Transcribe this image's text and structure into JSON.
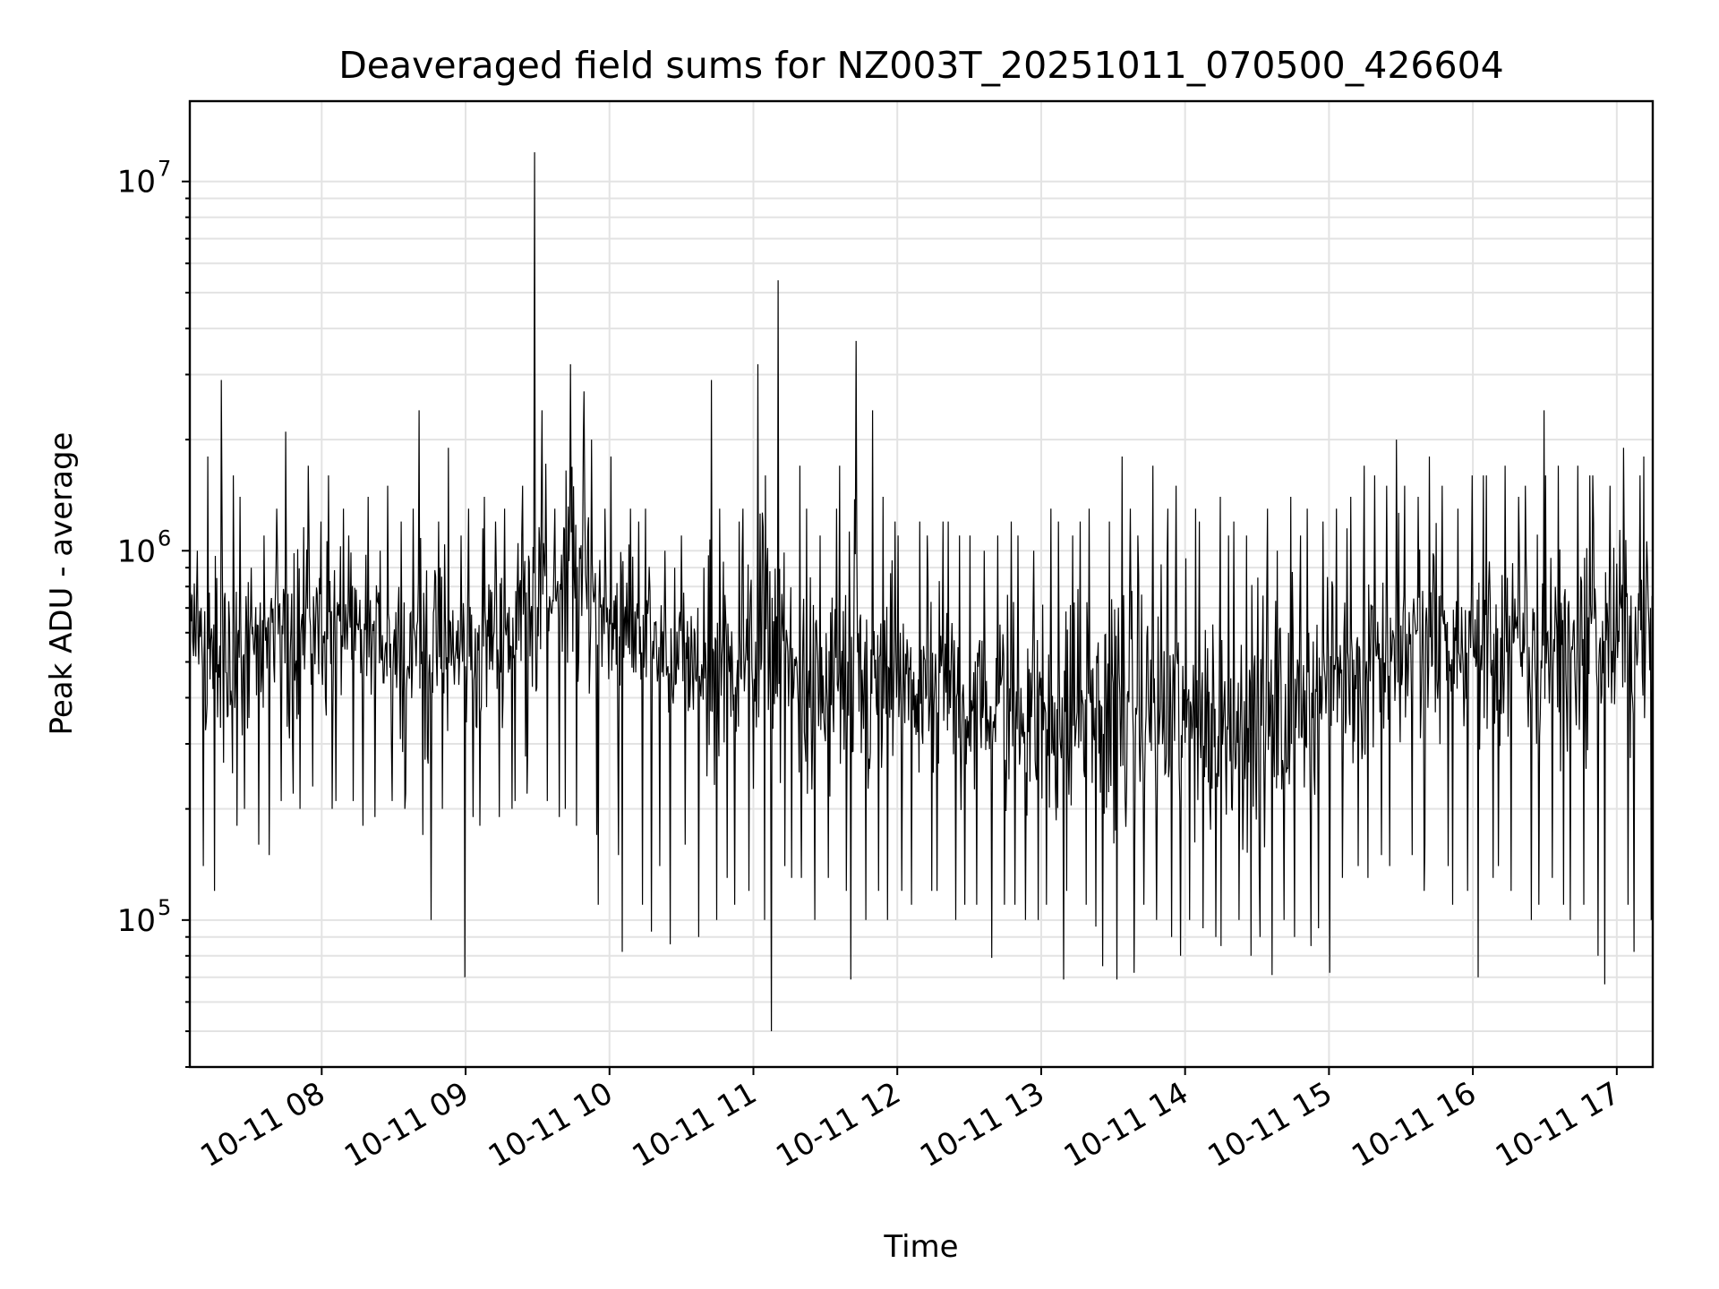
{
  "chart_data": {
    "type": "line",
    "title": "Deaveraged field sums for NZ003T_20251011_070500_426604",
    "xlabel": "Time",
    "ylabel": "Peak ADU - average",
    "yscale": "log",
    "ylim": [
      40000,
      16500000
    ],
    "xlim": [
      "2025-10-11 07:05",
      "2025-10-11 17:15"
    ],
    "grid": true,
    "legend": "none",
    "line_color": "#000000",
    "x_ticks": [
      {
        "value": "2025-10-11 08:00",
        "label": "10-11 08"
      },
      {
        "value": "2025-10-11 09:00",
        "label": "10-11 09"
      },
      {
        "value": "2025-10-11 10:00",
        "label": "10-11 10"
      },
      {
        "value": "2025-10-11 11:00",
        "label": "10-11 11"
      },
      {
        "value": "2025-10-11 12:00",
        "label": "10-11 12"
      },
      {
        "value": "2025-10-11 13:00",
        "label": "10-11 13"
      },
      {
        "value": "2025-10-11 14:00",
        "label": "10-11 14"
      },
      {
        "value": "2025-10-11 15:00",
        "label": "10-11 15"
      },
      {
        "value": "2025-10-11 16:00",
        "label": "10-11 16"
      },
      {
        "value": "2025-10-11 17:00",
        "label": "10-11 17"
      }
    ],
    "y_ticks": [
      {
        "value": 100000,
        "base": "10",
        "exp": "5"
      },
      {
        "value": 1000000,
        "base": "10",
        "exp": "6"
      },
      {
        "value": 10000000,
        "base": "10",
        "exp": "7"
      }
    ],
    "x": [
      "2025-10-11 07:05",
      "2025-10-11 07:10",
      "2025-10-11 07:15",
      "2025-10-11 07:20",
      "2025-10-11 07:25",
      "2025-10-11 07:30",
      "2025-10-11 07:35",
      "2025-10-11 07:40",
      "2025-10-11 07:45",
      "2025-10-11 07:50",
      "2025-10-11 07:55",
      "2025-10-11 08:00",
      "2025-10-11 08:05",
      "2025-10-11 08:10",
      "2025-10-11 08:15",
      "2025-10-11 08:20",
      "2025-10-11 08:25",
      "2025-10-11 08:30",
      "2025-10-11 08:35",
      "2025-10-11 08:40",
      "2025-10-11 08:45",
      "2025-10-11 08:50",
      "2025-10-11 08:55",
      "2025-10-11 09:00",
      "2025-10-11 09:05",
      "2025-10-11 09:10",
      "2025-10-11 09:15",
      "2025-10-11 09:20",
      "2025-10-11 09:25",
      "2025-10-11 09:30",
      "2025-10-11 09:35",
      "2025-10-11 09:40",
      "2025-10-11 09:45",
      "2025-10-11 09:50",
      "2025-10-11 09:55",
      "2025-10-11 10:00",
      "2025-10-11 10:05",
      "2025-10-11 10:10",
      "2025-10-11 10:15",
      "2025-10-11 10:20",
      "2025-10-11 10:25",
      "2025-10-11 10:30",
      "2025-10-11 10:35",
      "2025-10-11 10:40",
      "2025-10-11 10:45",
      "2025-10-11 10:50",
      "2025-10-11 10:55",
      "2025-10-11 11:00",
      "2025-10-11 11:05",
      "2025-10-11 11:10",
      "2025-10-11 11:15",
      "2025-10-11 11:20",
      "2025-10-11 11:25",
      "2025-10-11 11:30",
      "2025-10-11 11:35",
      "2025-10-11 11:40",
      "2025-10-11 11:45",
      "2025-10-11 11:50",
      "2025-10-11 11:55",
      "2025-10-11 12:00",
      "2025-10-11 12:05",
      "2025-10-11 12:10",
      "2025-10-11 12:15",
      "2025-10-11 12:20",
      "2025-10-11 12:25",
      "2025-10-11 12:30",
      "2025-10-11 12:35",
      "2025-10-11 12:40",
      "2025-10-11 12:45",
      "2025-10-11 12:50",
      "2025-10-11 12:55",
      "2025-10-11 13:00",
      "2025-10-11 13:05",
      "2025-10-11 13:10",
      "2025-10-11 13:15",
      "2025-10-11 13:20",
      "2025-10-11 13:25",
      "2025-10-11 13:30",
      "2025-10-11 13:35",
      "2025-10-11 13:40",
      "2025-10-11 13:45",
      "2025-10-11 13:50",
      "2025-10-11 13:55",
      "2025-10-11 14:00",
      "2025-10-11 14:05",
      "2025-10-11 14:10",
      "2025-10-11 14:15",
      "2025-10-11 14:20",
      "2025-10-11 14:25",
      "2025-10-11 14:30",
      "2025-10-11 14:35",
      "2025-10-11 14:40",
      "2025-10-11 14:45",
      "2025-10-11 14:50",
      "2025-10-11 14:55",
      "2025-10-11 15:00",
      "2025-10-11 15:05",
      "2025-10-11 15:10",
      "2025-10-11 15:15",
      "2025-10-11 15:20",
      "2025-10-11 15:25",
      "2025-10-11 15:30",
      "2025-10-11 15:35",
      "2025-10-11 15:40",
      "2025-10-11 15:45",
      "2025-10-11 15:50",
      "2025-10-11 15:55",
      "2025-10-11 16:00",
      "2025-10-11 16:05",
      "2025-10-11 16:10",
      "2025-10-11 16:15",
      "2025-10-11 16:20",
      "2025-10-11 16:25",
      "2025-10-11 16:30",
      "2025-10-11 16:35",
      "2025-10-11 16:40",
      "2025-10-11 16:45",
      "2025-10-11 16:50",
      "2025-10-11 16:55",
      "2025-10-11 17:00",
      "2025-10-11 17:05",
      "2025-10-11 17:10",
      "2025-10-11 17:15"
    ],
    "series": [
      {
        "y_high": [
          1000000,
          1800000,
          2900000,
          1600000,
          1400000,
          900000,
          1100000,
          1300000,
          2100000,
          1700000,
          1200000,
          1600000,
          1300000,
          1100000,
          1400000,
          1000000,
          1500000,
          1200000,
          1300000,
          2400000,
          1200000,
          1900000,
          1100000,
          1300000,
          1400000,
          1200000,
          1300000,
          1500000,
          12000000,
          2400000,
          1300000,
          3200000,
          2700000,
          2000000,
          1300000,
          1800000,
          1300000,
          1200000,
          1300000,
          1000000,
          900000,
          1100000,
          900000,
          2900000,
          1300000,
          1200000,
          1300000,
          3200000,
          1600000,
          5400000,
          1700000,
          1300000,
          1100000,
          1300000,
          1700000,
          3700000,
          2400000,
          1400000,
          1200000,
          1100000,
          1200000,
          1100000,
          1200000,
          1200000,
          1100000,
          1100000,
          1000000,
          1100000,
          1200000,
          1100000,
          1000000,
          1300000,
          1200000,
          1100000,
          1200000,
          1300000,
          1200000,
          1800000,
          1300000,
          1100000,
          1700000,
          1300000,
          1500000,
          1300000,
          1200000,
          1400000,
          1100000,
          1200000,
          1100000,
          1300000,
          1000000,
          1400000,
          1100000,
          1300000,
          1200000,
          1300000,
          1400000,
          1700000,
          1600000,
          1500000,
          2000000,
          1500000,
          1400000,
          1800000,
          1500000,
          1300000,
          1600000,
          1600000,
          1600000,
          1700000,
          1400000,
          1500000,
          2400000,
          1600000,
          1700000,
          1700000,
          1600000,
          1600000,
          1500000,
          1900000,
          1600000,
          1800000,
          1900000
        ],
        "y_low": [
          100000,
          140000,
          120000,
          180000,
          200000,
          160000,
          150000,
          210000,
          220000,
          200000,
          230000,
          200000,
          210000,
          210000,
          180000,
          190000,
          210000,
          200000,
          220000,
          170000,
          100000,
          200000,
          70000,
          190000,
          180000,
          190000,
          200000,
          210000,
          220000,
          210000,
          190000,
          200000,
          180000,
          170000,
          110000,
          150000,
          82000,
          110000,
          93000,
          140000,
          86000,
          160000,
          90000,
          100000,
          130000,
          110000,
          120000,
          100000,
          50000,
          140000,
          130000,
          130000,
          100000,
          130000,
          120000,
          69000,
          100000,
          120000,
          100000,
          120000,
          110000,
          120000,
          120000,
          100000,
          110000,
          110000,
          79000,
          110000,
          110000,
          100000,
          100000,
          110000,
          69000,
          120000,
          110000,
          96000,
          75000,
          69000,
          72000,
          110000,
          100000,
          90000,
          80000,
          100000,
          95000,
          90000,
          85000,
          100000,
          80000,
          90000,
          71000,
          100000,
          90000,
          85000,
          95000,
          72000,
          130000,
          140000,
          130000,
          150000,
          140000,
          150000,
          120000,
          160000,
          140000,
          110000,
          120000,
          70000,
          130000,
          140000,
          120000,
          100000,
          110000,
          130000,
          110000,
          100000,
          110000,
          80000,
          67000,
          110000,
          82000,
          100000,
          130000
        ],
        "y_level": [
          600000,
          600000,
          500000,
          480000,
          500000,
          520000,
          560000,
          600000,
          620000,
          650000,
          640000,
          620000,
          620000,
          600000,
          580000,
          580000,
          600000,
          560000,
          550000,
          560000,
          540000,
          560000,
          520000,
          520000,
          540000,
          580000,
          600000,
          620000,
          780000,
          800000,
          760000,
          820000,
          860000,
          800000,
          740000,
          680000,
          620000,
          620000,
          600000,
          560000,
          520000,
          500000,
          480000,
          480000,
          500000,
          520000,
          520000,
          540000,
          560000,
          560000,
          480000,
          420000,
          400000,
          400000,
          420000,
          420000,
          430000,
          430000,
          430000,
          420000,
          410000,
          400000,
          400000,
          400000,
          400000,
          390000,
          380000,
          380000,
          370000,
          380000,
          380000,
          370000,
          360000,
          360000,
          370000,
          380000,
          370000,
          360000,
          350000,
          360000,
          370000,
          360000,
          360000,
          360000,
          360000,
          360000,
          350000,
          340000,
          350000,
          360000,
          360000,
          370000,
          380000,
          400000,
          420000,
          450000,
          480000,
          520000,
          540000,
          560000,
          560000,
          560000,
          560000,
          560000,
          560000,
          560000,
          550000,
          550000,
          540000,
          540000,
          540000,
          530000,
          540000,
          540000,
          550000,
          560000,
          560000,
          570000,
          580000,
          580000,
          600000,
          620000,
          640000
        ]
      }
    ]
  }
}
